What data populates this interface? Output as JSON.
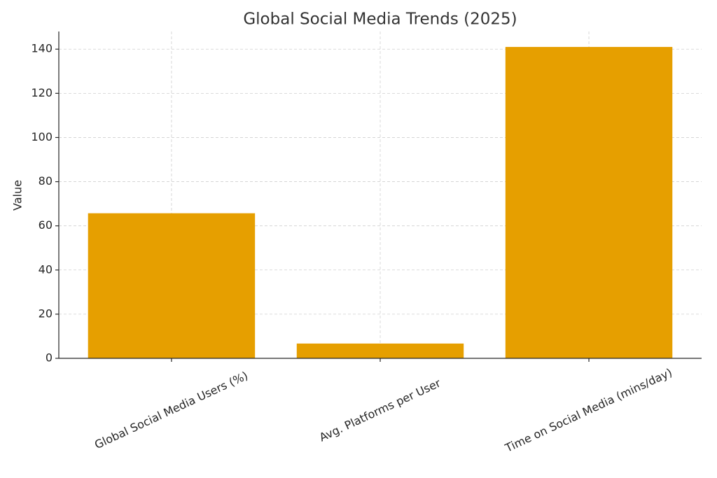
{
  "chart_data": {
    "type": "bar",
    "title": "Global Social Media Trends (2025)",
    "y_label": "Value",
    "categories": [
      "Global Social Media Users (%)",
      "Avg. Platforms per User",
      "Time on Social Media (mins/day)"
    ],
    "values": [
      65.7,
      6.7,
      141
    ],
    "color": "#e69f00",
    "ylim": [
      0,
      148
    ],
    "yticks": [
      0,
      20,
      40,
      60,
      80,
      100,
      120,
      140
    ],
    "grid": true
  }
}
